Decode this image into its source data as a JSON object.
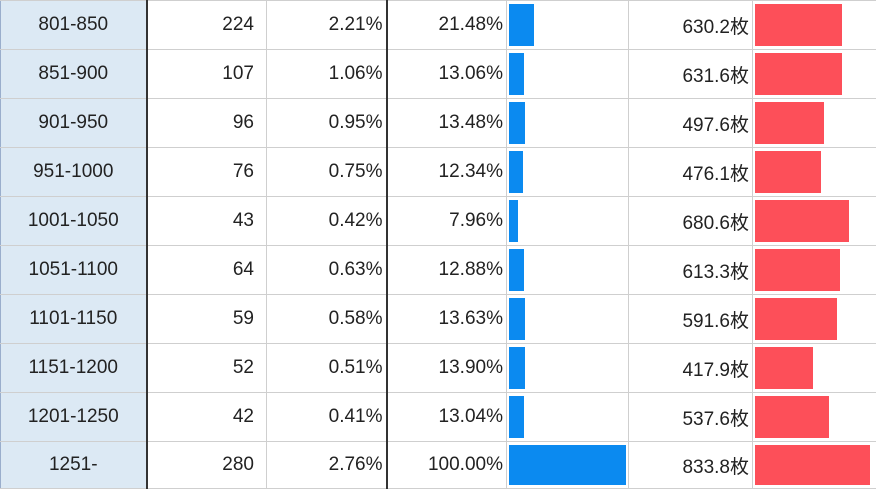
{
  "chart_data": {
    "type": "table",
    "columns": [
      "range",
      "count",
      "share",
      "rate",
      "rate_bar",
      "avg",
      "avg_bar"
    ],
    "colors": {
      "rate_bar": "#0b8af0",
      "avg_bar": "#fd4f59",
      "range_bg": "#dce9f4"
    },
    "rows": [
      {
        "range": "801-850",
        "count": "224",
        "share": "2.21%",
        "rate": "21.48%",
        "rate_value": 21.48,
        "avg": "630.2枚",
        "avg_value": 630.2
      },
      {
        "range": "851-900",
        "count": "107",
        "share": "1.06%",
        "rate": "13.06%",
        "rate_value": 13.06,
        "avg": "631.6枚",
        "avg_value": 631.6
      },
      {
        "range": "901-950",
        "count": "96",
        "share": "0.95%",
        "rate": "13.48%",
        "rate_value": 13.48,
        "avg": "497.6枚",
        "avg_value": 497.6
      },
      {
        "range": "951-1000",
        "count": "76",
        "share": "0.75%",
        "rate": "12.34%",
        "rate_value": 12.34,
        "avg": "476.1枚",
        "avg_value": 476.1
      },
      {
        "range": "1001-1050",
        "count": "43",
        "share": "0.42%",
        "rate": "7.96%",
        "rate_value": 7.96,
        "avg": "680.6枚",
        "avg_value": 680.6
      },
      {
        "range": "1051-1100",
        "count": "64",
        "share": "0.63%",
        "rate": "12.88%",
        "rate_value": 12.88,
        "avg": "613.3枚",
        "avg_value": 613.3
      },
      {
        "range": "1101-1150",
        "count": "59",
        "share": "0.58%",
        "rate": "13.63%",
        "rate_value": 13.63,
        "avg": "591.6枚",
        "avg_value": 591.6
      },
      {
        "range": "1151-1200",
        "count": "52",
        "share": "0.51%",
        "rate": "13.90%",
        "rate_value": 13.9,
        "avg": "417.9枚",
        "avg_value": 417.9
      },
      {
        "range": "1201-1250",
        "count": "42",
        "share": "0.41%",
        "rate": "13.04%",
        "rate_value": 13.04,
        "avg": "537.6枚",
        "avg_value": 537.6
      },
      {
        "range": "1251-",
        "count": "280",
        "share": "2.76%",
        "rate": "100.00%",
        "rate_value": 100.0,
        "avg": "833.8枚",
        "avg_value": 833.8
      }
    ]
  }
}
